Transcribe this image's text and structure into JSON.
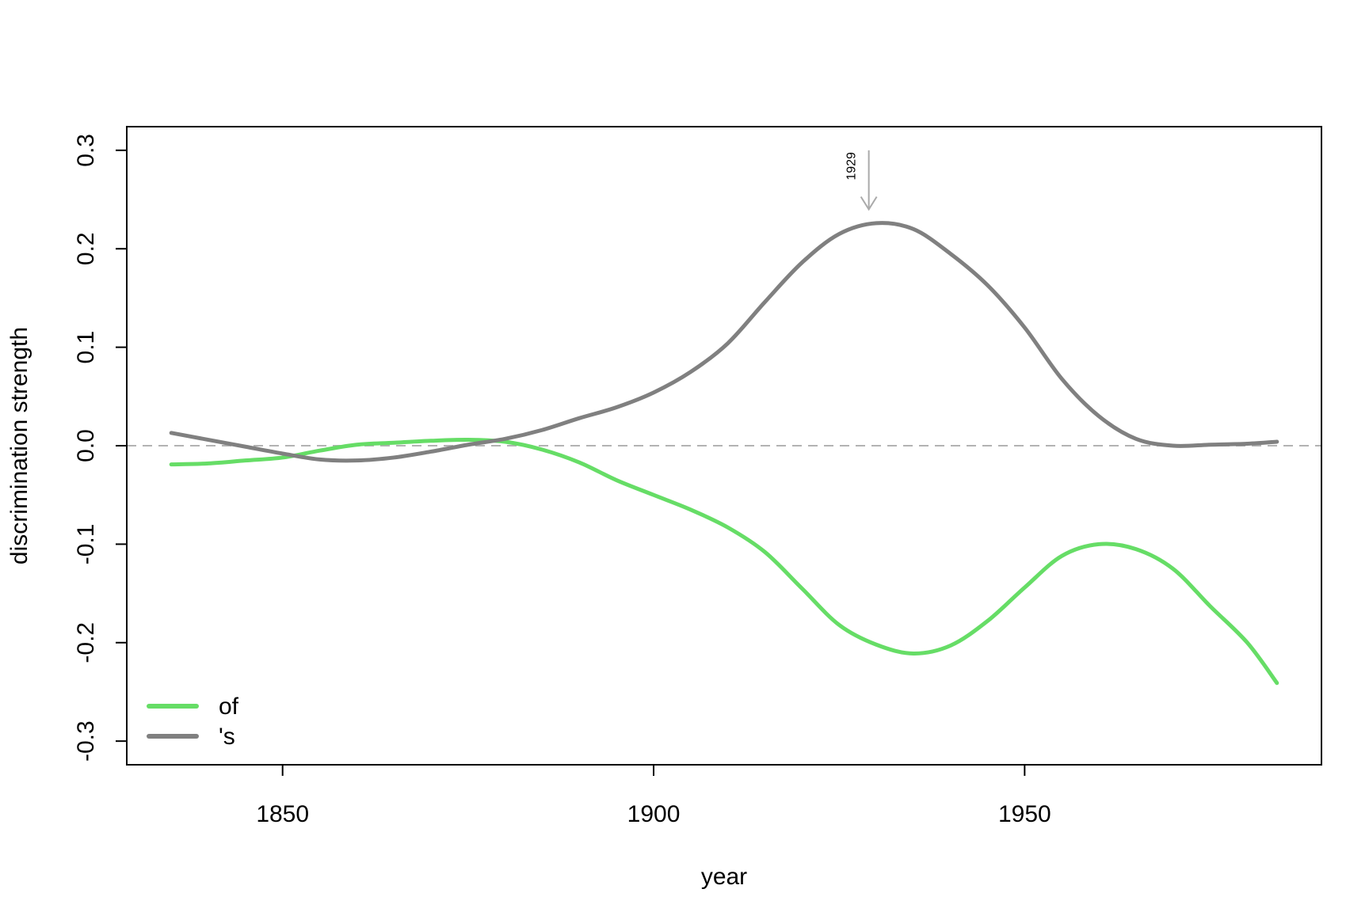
{
  "chart_data": {
    "type": "line",
    "title": "",
    "xlabel": "year",
    "ylabel": "discrimination strength",
    "xlim": [
      1829,
      1990
    ],
    "ylim": [
      -0.3,
      0.3
    ],
    "x_ticks": [
      1850,
      1900,
      1950
    ],
    "y_ticks": [
      -0.3,
      -0.2,
      -0.1,
      0.0,
      0.1,
      0.2,
      0.3
    ],
    "x_tick_labels": [
      "1850",
      "1900",
      "1950"
    ],
    "y_tick_labels": [
      "-0.3",
      "-0.2",
      "-0.1",
      "0.0",
      "0.1",
      "0.2",
      "0.3"
    ],
    "reference_line": {
      "y": 0.0,
      "style": "dashed",
      "color": "#b3b3b3"
    },
    "legend": {
      "placement": "bottom-left"
    },
    "annotation": {
      "label": "1929",
      "x": 1929,
      "type": "arrow-down",
      "color": "#aaaaaa"
    },
    "grid": false,
    "series": [
      {
        "name": "of",
        "color": "#66dd66",
        "points": [
          [
            1835,
            -0.019
          ],
          [
            1840,
            -0.018
          ],
          [
            1845,
            -0.015
          ],
          [
            1850,
            -0.012
          ],
          [
            1855,
            -0.005
          ],
          [
            1860,
            0.001
          ],
          [
            1865,
            0.003
          ],
          [
            1870,
            0.005
          ],
          [
            1875,
            0.006
          ],
          [
            1880,
            0.004
          ],
          [
            1885,
            -0.004
          ],
          [
            1890,
            -0.017
          ],
          [
            1895,
            -0.035
          ],
          [
            1900,
            -0.05
          ],
          [
            1905,
            -0.065
          ],
          [
            1910,
            -0.083
          ],
          [
            1915,
            -0.108
          ],
          [
            1920,
            -0.145
          ],
          [
            1925,
            -0.182
          ],
          [
            1930,
            -0.202
          ],
          [
            1935,
            -0.211
          ],
          [
            1940,
            -0.203
          ],
          [
            1945,
            -0.178
          ],
          [
            1950,
            -0.144
          ],
          [
            1955,
            -0.112
          ],
          [
            1960,
            -0.1
          ],
          [
            1965,
            -0.105
          ],
          [
            1970,
            -0.125
          ],
          [
            1975,
            -0.163
          ],
          [
            1980,
            -0.2
          ],
          [
            1984,
            -0.241
          ]
        ]
      },
      {
        "name": "'s",
        "color": "#808080",
        "points": [
          [
            1835,
            0.013
          ],
          [
            1840,
            0.006
          ],
          [
            1845,
            -0.001
          ],
          [
            1850,
            -0.008
          ],
          [
            1855,
            -0.014
          ],
          [
            1860,
            -0.015
          ],
          [
            1865,
            -0.012
          ],
          [
            1870,
            -0.006
          ],
          [
            1875,
            0.001
          ],
          [
            1880,
            0.007
          ],
          [
            1885,
            0.016
          ],
          [
            1890,
            0.028
          ],
          [
            1895,
            0.039
          ],
          [
            1900,
            0.054
          ],
          [
            1905,
            0.075
          ],
          [
            1910,
            0.104
          ],
          [
            1915,
            0.146
          ],
          [
            1920,
            0.186
          ],
          [
            1925,
            0.215
          ],
          [
            1930,
            0.226
          ],
          [
            1935,
            0.22
          ],
          [
            1940,
            0.195
          ],
          [
            1945,
            0.163
          ],
          [
            1950,
            0.12
          ],
          [
            1955,
            0.068
          ],
          [
            1960,
            0.03
          ],
          [
            1965,
            0.007
          ],
          [
            1970,
            0.0
          ],
          [
            1975,
            0.001
          ],
          [
            1980,
            0.002
          ],
          [
            1984,
            0.004
          ]
        ]
      }
    ]
  }
}
